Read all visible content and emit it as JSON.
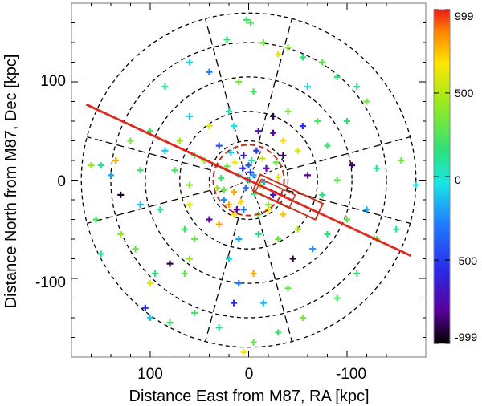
{
  "chart_data": {
    "type": "scatter",
    "title": "",
    "xlabel": "Distance East from M87, RA [kpc]",
    "ylabel": "Distance North from M87, Dec [kpc]",
    "xlim": [
      180,
      -180
    ],
    "ylim": [
      -180,
      180
    ],
    "x_ticks": [
      100,
      0,
      -100
    ],
    "x_tick_labels": [
      "100",
      "0",
      "-100"
    ],
    "y_ticks": [
      100,
      0,
      -100
    ],
    "y_tick_labels": [
      "100",
      "0",
      "-100"
    ],
    "colorbar": {
      "range": [
        -999,
        999
      ],
      "tick_values": [
        999,
        500,
        0,
        -500,
        -999
      ],
      "tick_labels": [
        "999",
        "500",
        "0",
        "-500",
        "-999"
      ],
      "colormap": "rainbow (black-purple-blue-cyan-green-yellow-red)"
    },
    "rings_kpc": [
      40,
      70,
      105,
      140,
      170
    ],
    "red_ring_kpc": 36,
    "sector_angles_deg": [
      15,
      75,
      105,
      165,
      195,
      255,
      285,
      345
    ],
    "major_axis_line": {
      "x": [
        165,
        -165
      ],
      "y": [
        77,
        -77
      ]
    },
    "points": [
      {
        "x": 2,
        "y": 163,
        "v": 200
      },
      {
        "x": -2,
        "y": 160,
        "v": 250
      },
      {
        "x": 22,
        "y": 143,
        "v": 180
      },
      {
        "x": -15,
        "y": 140,
        "v": 330
      },
      {
        "x": -40,
        "y": 135,
        "v": 420
      },
      {
        "x": -30,
        "y": 128,
        "v": 620
      },
      {
        "x": -55,
        "y": 125,
        "v": 150
      },
      {
        "x": -75,
        "y": 120,
        "v": 300
      },
      {
        "x": 60,
        "y": 120,
        "v": -50
      },
      {
        "x": 40,
        "y": 110,
        "v": -300
      },
      {
        "x": -90,
        "y": 105,
        "v": 180
      },
      {
        "x": 10,
        "y": 100,
        "v": 350
      },
      {
        "x": -60,
        "y": 95,
        "v": -80
      },
      {
        "x": 85,
        "y": 95,
        "v": 100
      },
      {
        "x": -5,
        "y": 90,
        "v": 230
      },
      {
        "x": -110,
        "y": 95,
        "v": 90
      },
      {
        "x": -120,
        "y": 80,
        "v": 320
      },
      {
        "x": -100,
        "y": 60,
        "v": 150
      },
      {
        "x": 60,
        "y": 65,
        "v": -100
      },
      {
        "x": -70,
        "y": 60,
        "v": 250
      },
      {
        "x": -25,
        "y": 65,
        "v": -900
      },
      {
        "x": -40,
        "y": 70,
        "v": 400
      },
      {
        "x": 20,
        "y": 70,
        "v": 50
      },
      {
        "x": -55,
        "y": 55,
        "v": -550
      },
      {
        "x": -10,
        "y": 50,
        "v": -700
      },
      {
        "x": -25,
        "y": 48,
        "v": -780
      },
      {
        "x": 15,
        "y": 55,
        "v": -50
      },
      {
        "x": -35,
        "y": 40,
        "v": 700
      },
      {
        "x": -35,
        "y": 25,
        "v": -900
      },
      {
        "x": 30,
        "y": 35,
        "v": -420
      },
      {
        "x": -50,
        "y": 30,
        "v": 600
      },
      {
        "x": 45,
        "y": 20,
        "v": 420
      },
      {
        "x": 135,
        "y": 20,
        "v": 800
      },
      {
        "x": 150,
        "y": 15,
        "v": 100
      },
      {
        "x": 160,
        "y": 15,
        "v": 420
      },
      {
        "x": 110,
        "y": 10,
        "v": 200
      },
      {
        "x": 75,
        "y": 10,
        "v": 250
      },
      {
        "x": 60,
        "y": -5,
        "v": 380
      },
      {
        "x": 55,
        "y": 25,
        "v": 250
      },
      {
        "x": -105,
        "y": 15,
        "v": -850
      },
      {
        "x": -130,
        "y": 12,
        "v": 100
      },
      {
        "x": -170,
        "y": -5,
        "v": -50
      },
      {
        "x": -155,
        "y": 20,
        "v": 330
      },
      {
        "x": 140,
        "y": 5,
        "v": -200
      },
      {
        "x": 130,
        "y": -15,
        "v": -950
      },
      {
        "x": 110,
        "y": -25,
        "v": -150
      },
      {
        "x": 90,
        "y": -30,
        "v": 100
      },
      {
        "x": 60,
        "y": -25,
        "v": 600
      },
      {
        "x": 20,
        "y": -25,
        "v": 800
      },
      {
        "x": 15,
        "y": -35,
        "v": 700
      },
      {
        "x": 5,
        "y": -30,
        "v": -300
      },
      {
        "x": -10,
        "y": -35,
        "v": 300
      },
      {
        "x": -20,
        "y": -30,
        "v": 650
      },
      {
        "x": -35,
        "y": -35,
        "v": 750
      },
      {
        "x": 40,
        "y": -40,
        "v": -800
      },
      {
        "x": 30,
        "y": -45,
        "v": 820
      },
      {
        "x": 65,
        "y": -50,
        "v": 200
      },
      {
        "x": 55,
        "y": -60,
        "v": 300
      },
      {
        "x": 10,
        "y": -60,
        "v": -200
      },
      {
        "x": -10,
        "y": -55,
        "v": 150
      },
      {
        "x": -50,
        "y": -50,
        "v": 450
      },
      {
        "x": -65,
        "y": -70,
        "v": -250
      },
      {
        "x": -45,
        "y": -80,
        "v": -900
      },
      {
        "x": -30,
        "y": -60,
        "v": 320
      },
      {
        "x": 20,
        "y": -80,
        "v": -100
      },
      {
        "x": 60,
        "y": -80,
        "v": 400
      },
      {
        "x": 65,
        "y": -95,
        "v": 300
      },
      {
        "x": 95,
        "y": -95,
        "v": 150
      },
      {
        "x": 100,
        "y": -105,
        "v": 600
      },
      {
        "x": 80,
        "y": -85,
        "v": -900
      },
      {
        "x": 10,
        "y": -105,
        "v": -300
      },
      {
        "x": 15,
        "y": -125,
        "v": -550
      },
      {
        "x": -15,
        "y": -125,
        "v": -150
      },
      {
        "x": -40,
        "y": -110,
        "v": 300
      },
      {
        "x": -5,
        "y": -95,
        "v": 800
      },
      {
        "x": 105,
        "y": -130,
        "v": -550
      },
      {
        "x": 100,
        "y": -140,
        "v": -100
      },
      {
        "x": 80,
        "y": -145,
        "v": 200
      },
      {
        "x": 30,
        "y": -150,
        "v": 150
      },
      {
        "x": 5,
        "y": -175,
        "v": 680
      },
      {
        "x": -5,
        "y": -165,
        "v": 300
      },
      {
        "x": -30,
        "y": -155,
        "v": 200
      },
      {
        "x": 55,
        "y": -135,
        "v": 230
      },
      {
        "x": -55,
        "y": -140,
        "v": 350
      },
      {
        "x": -90,
        "y": -120,
        "v": 250
      },
      {
        "x": -110,
        "y": -95,
        "v": 180
      },
      {
        "x": -130,
        "y": -60,
        "v": 350
      },
      {
        "x": -150,
        "y": -50,
        "v": 100
      },
      {
        "x": -120,
        "y": -30,
        "v": -200
      },
      {
        "x": -100,
        "y": -40,
        "v": 300
      },
      {
        "x": -80,
        "y": -55,
        "v": 150
      },
      {
        "x": 130,
        "y": -55,
        "v": 400
      },
      {
        "x": 155,
        "y": -40,
        "v": 250
      },
      {
        "x": 115,
        "y": -70,
        "v": 300
      },
      {
        "x": 150,
        "y": -75,
        "v": 100
      },
      {
        "x": 120,
        "y": 40,
        "v": 350
      },
      {
        "x": 100,
        "y": 50,
        "v": 200
      },
      {
        "x": 85,
        "y": 30,
        "v": -100
      },
      {
        "x": 70,
        "y": 40,
        "v": 450
      },
      {
        "x": -80,
        "y": 35,
        "v": 200
      },
      {
        "x": -90,
        "y": 0,
        "v": 280
      },
      {
        "x": -75,
        "y": -15,
        "v": 150
      },
      {
        "x": 40,
        "y": 55,
        "v": 600
      },
      {
        "x": -60,
        "y": 5,
        "v": -800
      },
      {
        "x": 25,
        "y": -10,
        "v": 300
      },
      {
        "x": 0,
        "y": 15,
        "v": -400
      },
      {
        "x": 5,
        "y": 25,
        "v": -600
      },
      {
        "x": -5,
        "y": 5,
        "v": -200
      },
      {
        "x": 10,
        "y": 5,
        "v": 0
      },
      {
        "x": -12,
        "y": -5,
        "v": 500
      },
      {
        "x": 15,
        "y": -12,
        "v": 800
      },
      {
        "x": -18,
        "y": 12,
        "v": -750
      },
      {
        "x": 22,
        "y": 14,
        "v": 300
      },
      {
        "x": -25,
        "y": -15,
        "v": -650
      },
      {
        "x": 8,
        "y": -22,
        "v": 700
      },
      {
        "x": -8,
        "y": 30,
        "v": -500
      },
      {
        "x": 28,
        "y": 2,
        "v": 200
      },
      {
        "x": -30,
        "y": 3,
        "v": 600
      },
      {
        "x": 3,
        "y": -8,
        "v": -350
      },
      {
        "x": -3,
        "y": 20,
        "v": 100
      },
      {
        "x": 18,
        "y": 28,
        "v": -100
      },
      {
        "x": -20,
        "y": -25,
        "v": 400
      },
      {
        "x": 12,
        "y": -30,
        "v": -800
      },
      {
        "x": -14,
        "y": 22,
        "v": 550
      },
      {
        "x": 25,
        "y": -20,
        "v": -250
      },
      {
        "x": -6,
        "y": -14,
        "v": 200
      },
      {
        "x": 6,
        "y": 12,
        "v": -550
      },
      {
        "x": -28,
        "y": 18,
        "v": 300
      },
      {
        "x": 32,
        "y": -8,
        "v": 450
      },
      {
        "x": 0,
        "y": 0,
        "v": 0
      },
      {
        "x": -2,
        "y": 8,
        "v": -450
      },
      {
        "x": 14,
        "y": 18,
        "v": 650
      },
      {
        "x": -16,
        "y": -2,
        "v": -150
      }
    ]
  }
}
